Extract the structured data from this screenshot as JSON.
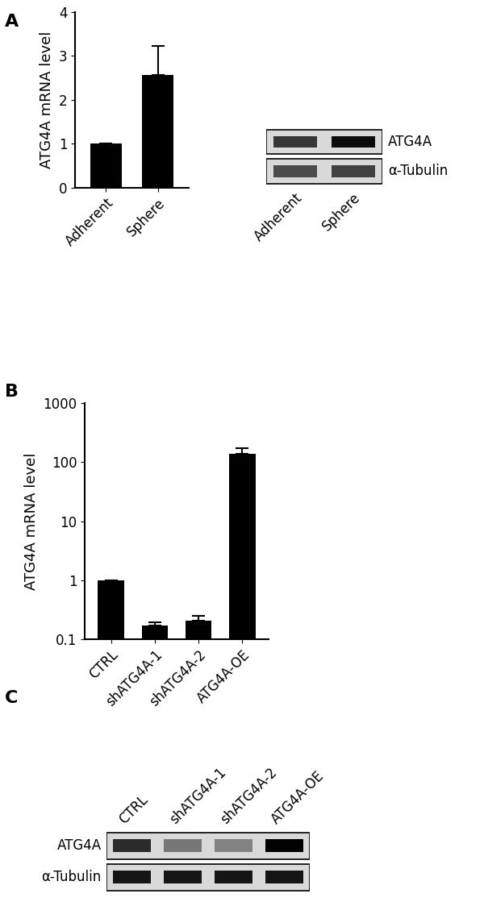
{
  "chart_data": [
    {
      "type": "bar",
      "title": "A",
      "y_label": "ATG4A mRNA level",
      "categories": [
        "Adherent",
        "Sphere"
      ],
      "values": [
        1,
        2.57
      ],
      "error": [
        0,
        0.65
      ],
      "color": "#000000",
      "ylim": [
        0,
        4
      ],
      "yticks": [
        0,
        1,
        2,
        3,
        4
      ]
    },
    {
      "type": "blot",
      "categories": [
        "Adherent",
        "Sphere"
      ],
      "series": [
        {
          "name": "ATG4A",
          "values": [
            0.75,
            0.95
          ]
        },
        {
          "name": "α-Tubulin",
          "values": [
            0.65,
            0.7
          ]
        }
      ]
    },
    {
      "type": "bar",
      "title": "B",
      "y_label": "ATG4A mRNA level",
      "log": "y",
      "categories": [
        "CTRL",
        "shATG4A-1",
        "shATG4A-2",
        "ATG4A-OE"
      ],
      "values": [
        1,
        0.17,
        0.21,
        140
      ],
      "error": [
        0,
        0.025,
        0.04,
        35
      ],
      "color": "#000000",
      "ylim": [
        0.1,
        1000
      ],
      "yticks": [
        0.1,
        1,
        10,
        100,
        1000
      ]
    },
    {
      "type": "blot",
      "title": "C",
      "categories": [
        "CTRL",
        "shATG4A-1",
        "shATG4A-2",
        "ATG4A-OE"
      ],
      "series": [
        {
          "name": "ATG4A",
          "values": [
            0.8,
            0.45,
            0.4,
            1.0
          ]
        },
        {
          "name": "α-Tubulin",
          "values": [
            0.9,
            0.9,
            0.9,
            0.9
          ]
        }
      ]
    }
  ]
}
